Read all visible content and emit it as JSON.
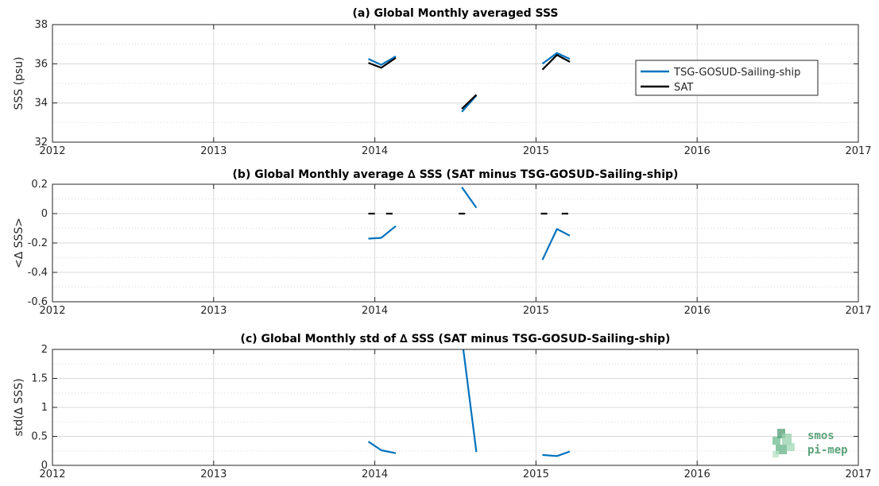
{
  "colors": {
    "tsg": "#0072BD",
    "sat": "#000000",
    "grid": "#d8d8d8",
    "logo": "#5aa37a"
  },
  "logo": {
    "line1": "smos",
    "line2": "pi-mep"
  },
  "chart_data": [
    {
      "type": "line",
      "title": "(a) Global Monthly averaged SSS",
      "ylabel": "SSS (psu)",
      "xlabel": "",
      "xlim": [
        2012,
        2017
      ],
      "ylim": [
        32,
        38
      ],
      "xticks": [
        "2012",
        "2013",
        "2014",
        "2015",
        "2016",
        "2017"
      ],
      "yticks": [
        "32",
        "34",
        "36",
        "38"
      ],
      "grid": true,
      "legend": {
        "position": "right",
        "entries": [
          "TSG-GOSUD-Sailing-ship",
          "SAT"
        ]
      },
      "series": [
        {
          "name": "TSG-GOSUD-Sailing-ship",
          "color_key": "tsg",
          "segments": [
            [
              [
                2013.96,
                36.25
              ],
              [
                2014.04,
                35.95
              ],
              [
                2014.13,
                36.38
              ]
            ],
            [
              [
                2014.54,
                33.55
              ],
              [
                2014.63,
                34.38
              ]
            ],
            [
              [
                2015.04,
                36.0
              ],
              [
                2015.13,
                36.55
              ],
              [
                2015.21,
                36.25
              ]
            ]
          ]
        },
        {
          "name": "SAT",
          "color_key": "sat",
          "segments": [
            [
              [
                2013.96,
                36.05
              ],
              [
                2014.04,
                35.8
              ],
              [
                2014.13,
                36.3
              ]
            ],
            [
              [
                2014.54,
                33.7
              ],
              [
                2014.63,
                34.42
              ]
            ],
            [
              [
                2015.04,
                35.7
              ],
              [
                2015.13,
                36.45
              ],
              [
                2015.21,
                36.1
              ]
            ]
          ]
        }
      ]
    },
    {
      "type": "line",
      "title": "(b) Global Monthly average ∆ SSS (SAT minus TSG-GOSUD-Sailing-ship)",
      "ylabel": "<∆ SSS>",
      "xlabel": "",
      "xlim": [
        2012,
        2017
      ],
      "ylim": [
        -0.6,
        0.2
      ],
      "xticks": [
        "2012",
        "2013",
        "2014",
        "2015",
        "2016",
        "2017"
      ],
      "yticks": [
        "-0.6",
        "-0.4",
        "-0.2",
        "0",
        "0.2"
      ],
      "grid": true,
      "series": [
        {
          "name": "TSG-GOSUD-Sailing-ship",
          "color_key": "tsg",
          "segments": [
            [
              [
                2013.96,
                -0.17
              ],
              [
                2014.04,
                -0.165
              ],
              [
                2014.13,
                -0.085
              ]
            ],
            [
              [
                2014.54,
                0.18
              ],
              [
                2014.63,
                0.04
              ]
            ],
            [
              [
                2015.04,
                -0.315
              ],
              [
                2015.13,
                -0.105
              ],
              [
                2015.21,
                -0.15
              ]
            ]
          ]
        },
        {
          "name": "SAT",
          "color_key": "sat",
          "style": "dashed-zero",
          "segments": [
            [
              [
                2013.96,
                0
              ],
              [
                2014.0,
                0
              ]
            ],
            [
              [
                2014.07,
                0
              ],
              [
                2014.11,
                0
              ]
            ],
            [
              [
                2014.52,
                0
              ],
              [
                2014.56,
                0
              ]
            ],
            [
              [
                2015.03,
                0
              ],
              [
                2015.07,
                0
              ]
            ],
            [
              [
                2015.16,
                0
              ],
              [
                2015.2,
                0
              ]
            ]
          ]
        }
      ]
    },
    {
      "type": "line",
      "title": "(c) Global Monthly std of ∆ SSS (SAT minus TSG-GOSUD-Sailing-ship)",
      "ylabel": "std(∆ SSS)",
      "xlabel": "",
      "xlim": [
        2012,
        2017
      ],
      "ylim": [
        0,
        2
      ],
      "xticks": [
        "2012",
        "2013",
        "2014",
        "2015",
        "2016",
        "2017"
      ],
      "yticks": [
        "0",
        "0.5",
        "1",
        "1.5",
        "2"
      ],
      "grid": true,
      "series": [
        {
          "name": "TSG-GOSUD-Sailing-ship",
          "color_key": "tsg",
          "segments": [
            [
              [
                2013.96,
                0.41
              ],
              [
                2014.04,
                0.26
              ],
              [
                2014.13,
                0.21
              ]
            ],
            [
              [
                2014.54,
                2.2
              ],
              [
                2014.63,
                0.23
              ]
            ],
            [
              [
                2015.04,
                0.18
              ],
              [
                2015.13,
                0.16
              ],
              [
                2015.21,
                0.24
              ]
            ]
          ]
        }
      ]
    }
  ]
}
